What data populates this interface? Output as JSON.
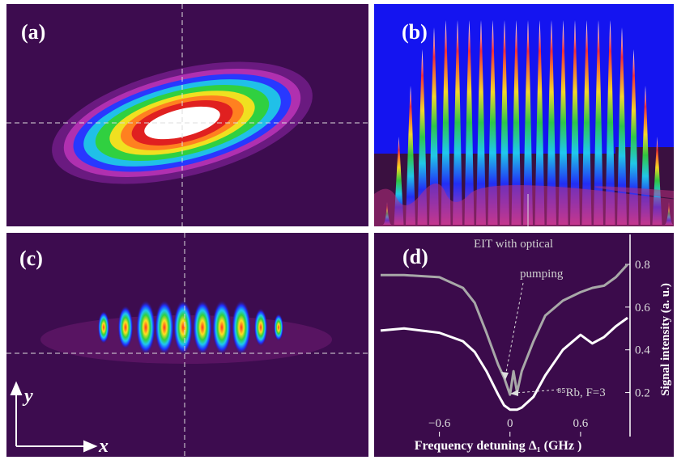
{
  "panels": [
    {
      "label": "(a)"
    },
    {
      "label": "(b)"
    },
    {
      "label": "(c)",
      "axis_y": "y",
      "axis_x": "x"
    }
  ],
  "chart_data": {
    "type": "line",
    "label": "(d)",
    "x_label": "Frequency detuning Δ₁ (GHz )",
    "y_label": "Signal intensity (a. u.)",
    "annotations": [
      "EIT with optical",
      "pumping",
      "⁸⁵Rb, F=3"
    ],
    "x": [
      -1.1,
      -0.9,
      -0.6,
      -0.4,
      -0.3,
      -0.2,
      -0.1,
      -0.05,
      0,
      0.03,
      0.06,
      0.1,
      0.2,
      0.3,
      0.45,
      0.6,
      0.7,
      0.8,
      0.9,
      1.0
    ],
    "series": [
      {
        "color": "#a8a8a8",
        "values": [
          0.75,
          0.75,
          0.74,
          0.69,
          0.62,
          0.48,
          0.33,
          0.27,
          0.19,
          0.3,
          0.2,
          0.3,
          0.44,
          0.56,
          0.63,
          0.67,
          0.69,
          0.7,
          0.74,
          0.8
        ]
      },
      {
        "color": "#ffffff",
        "values": [
          0.49,
          0.5,
          0.48,
          0.44,
          0.39,
          0.3,
          0.19,
          0.14,
          0.12,
          0.12,
          0.12,
          0.13,
          0.18,
          0.28,
          0.4,
          0.47,
          0.43,
          0.46,
          0.51,
          0.55
        ]
      }
    ],
    "xlim": [
      -1.1,
      1.0
    ],
    "ylim": [
      0.1,
      0.94
    ],
    "xticks": [
      {
        "value": -0.6,
        "label": "−0.6"
      },
      0,
      0.6
    ],
    "yticks": [
      0.2,
      0.4,
      0.6,
      0.8
    ]
  }
}
